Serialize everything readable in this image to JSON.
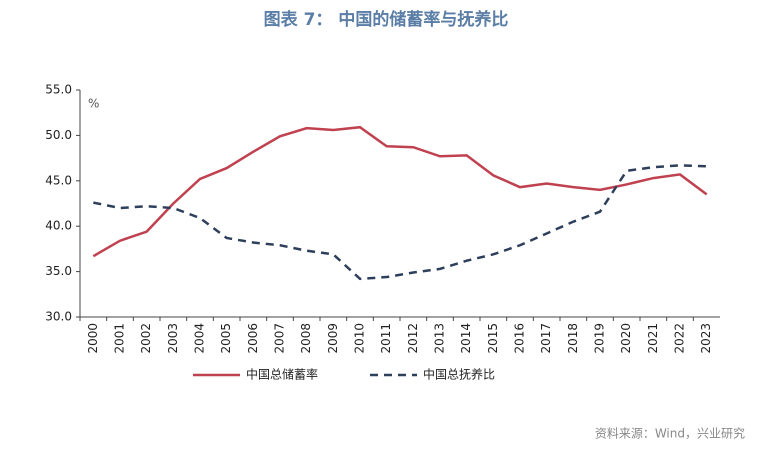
{
  "chart_data": {
    "type": "line",
    "title": "图表 7：  中国的储蓄率与抚养比",
    "unit": "%",
    "source": "资料来源：Wind，兴业研究",
    "categories": [
      "2000",
      "2001",
      "2002",
      "2003",
      "2004",
      "2005",
      "2006",
      "2007",
      "2008",
      "2009",
      "2010",
      "2011",
      "2012",
      "2013",
      "2014",
      "2015",
      "2016",
      "2017",
      "2018",
      "2019",
      "2020",
      "2021",
      "2022",
      "2023"
    ],
    "series": [
      {
        "name": "中国总储蓄率",
        "color": "#c0414f",
        "dash": false,
        "values": [
          36.7,
          38.4,
          39.4,
          42.5,
          45.2,
          46.4,
          48.2,
          49.9,
          50.8,
          50.6,
          50.9,
          48.8,
          48.7,
          47.7,
          47.8,
          45.6,
          44.3,
          44.7,
          44.3,
          44.0,
          44.6,
          45.3,
          45.7,
          43.5
        ]
      },
      {
        "name": "中国总抚养比",
        "color": "#2e3f5c",
        "dash": true,
        "values": [
          42.6,
          42.0,
          42.2,
          42.0,
          40.9,
          38.7,
          38.2,
          37.9,
          37.3,
          36.9,
          34.2,
          34.4,
          34.9,
          35.3,
          36.2,
          36.9,
          37.9,
          39.2,
          40.5,
          41.6,
          46.1,
          46.5,
          46.7,
          46.6
        ]
      }
    ],
    "ylim": [
      30,
      55
    ],
    "yticks": [
      {
        "value": 30,
        "label": "30.0"
      },
      {
        "value": 35,
        "label": "35.0"
      },
      {
        "value": 40,
        "label": "40.0"
      },
      {
        "value": 45,
        "label": "45.0"
      },
      {
        "value": 50,
        "label": "50.0"
      },
      {
        "value": 55,
        "label": "55.0"
      }
    ],
    "grid": false
  }
}
